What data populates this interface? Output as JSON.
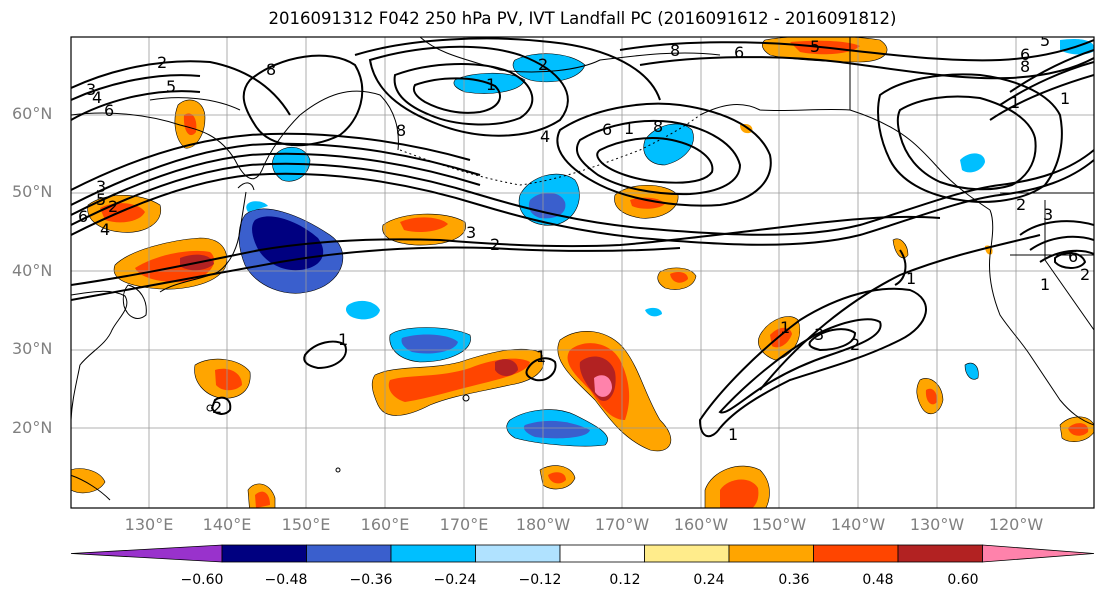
{
  "title": "2016091312 F042 250 hPa PV, IVT Landfall PC (2016091612 - 2016091812)",
  "lat_labels": [
    "60°N",
    "50°N",
    "40°N",
    "30°N",
    "20°N"
  ],
  "lon_labels": [
    "130°E",
    "140°E",
    "150°E",
    "160°E",
    "170°E",
    "180°W",
    "170°W",
    "160°W",
    "150°W",
    "140°W",
    "130°W",
    "120°W"
  ],
  "colorbar": {
    "colors": [
      "#9932cc",
      "#000080",
      "#3a5fcd",
      "#00bfff",
      "#b0e2ff",
      "#ffffff",
      "#ffec8b",
      "#ffa500",
      "#ff4500",
      "#b22222",
      "#ff82ab"
    ],
    "tick_labels": [
      "−0.60",
      "−0.48",
      "−0.36",
      "−0.24",
      "−0.12",
      "0.12",
      "0.24",
      "0.36",
      "0.48",
      "0.60"
    ]
  },
  "contour_labels": [
    "2",
    "3",
    "4",
    "5",
    "6",
    "8",
    "2",
    "3",
    "4",
    "5",
    "6",
    "8",
    "1",
    "2",
    "4",
    "6",
    "8",
    "1",
    "3",
    "2",
    "5",
    "6",
    "1",
    "1",
    "2",
    "3",
    "1",
    "2",
    "3",
    "1",
    "2",
    "1",
    "6",
    "8",
    "1",
    "2",
    "1",
    "1",
    "5",
    "6",
    "8"
  ]
}
